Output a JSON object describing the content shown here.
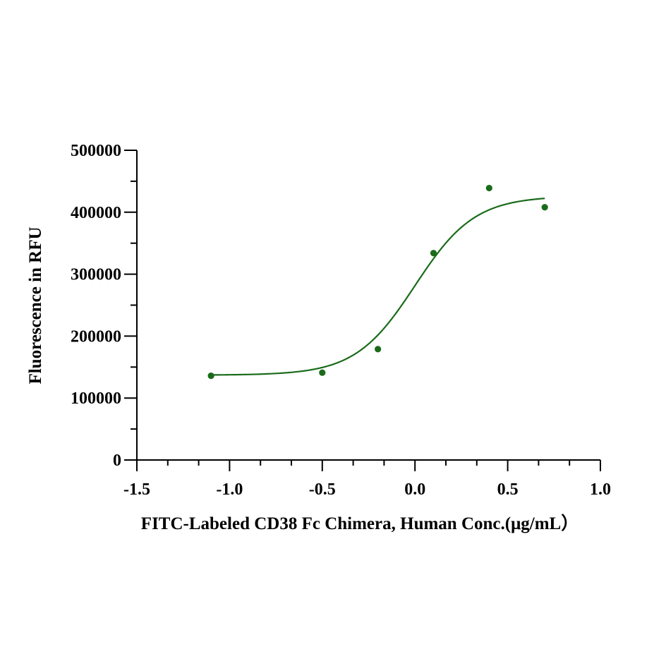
{
  "chart_data": {
    "type": "scatter",
    "title": "",
    "xlabel": "FITC-Labeled CD38 Fc Chimera, Human Conc.(μg/mL）",
    "ylabel": "Fluorescence in RFU",
    "xlim": [
      -1.5,
      1.0
    ],
    "ylim": [
      0,
      500000
    ],
    "x_ticks": [
      -1.5,
      -1.0,
      -0.5,
      0.0,
      0.5,
      1.0
    ],
    "x_tick_labels": [
      "-1.5",
      "-1.0",
      "-0.5",
      "0.0",
      "0.5",
      "1.0"
    ],
    "y_ticks": [
      0,
      100000,
      200000,
      300000,
      400000,
      500000
    ],
    "y_tick_labels": [
      "0",
      "100000",
      "200000",
      "300000",
      "400000",
      "500000"
    ],
    "grid": false,
    "legend": "none",
    "color": "#1a6b1a",
    "series": [
      {
        "points": [
          {
            "x": -1.1,
            "y": 136000
          },
          {
            "x": -0.5,
            "y": 141000
          },
          {
            "x": -0.2,
            "y": 179000
          },
          {
            "x": 0.1,
            "y": 334000
          },
          {
            "x": 0.4,
            "y": 439000
          },
          {
            "x": 0.7,
            "y": 408000
          }
        ],
        "fit": {
          "model": "4PL",
          "bottom": 137000,
          "top": 426000,
          "log_ec50": 0.0,
          "hill_slope": 2.7,
          "x_range": [
            -1.1,
            0.7
          ]
        }
      }
    ]
  }
}
